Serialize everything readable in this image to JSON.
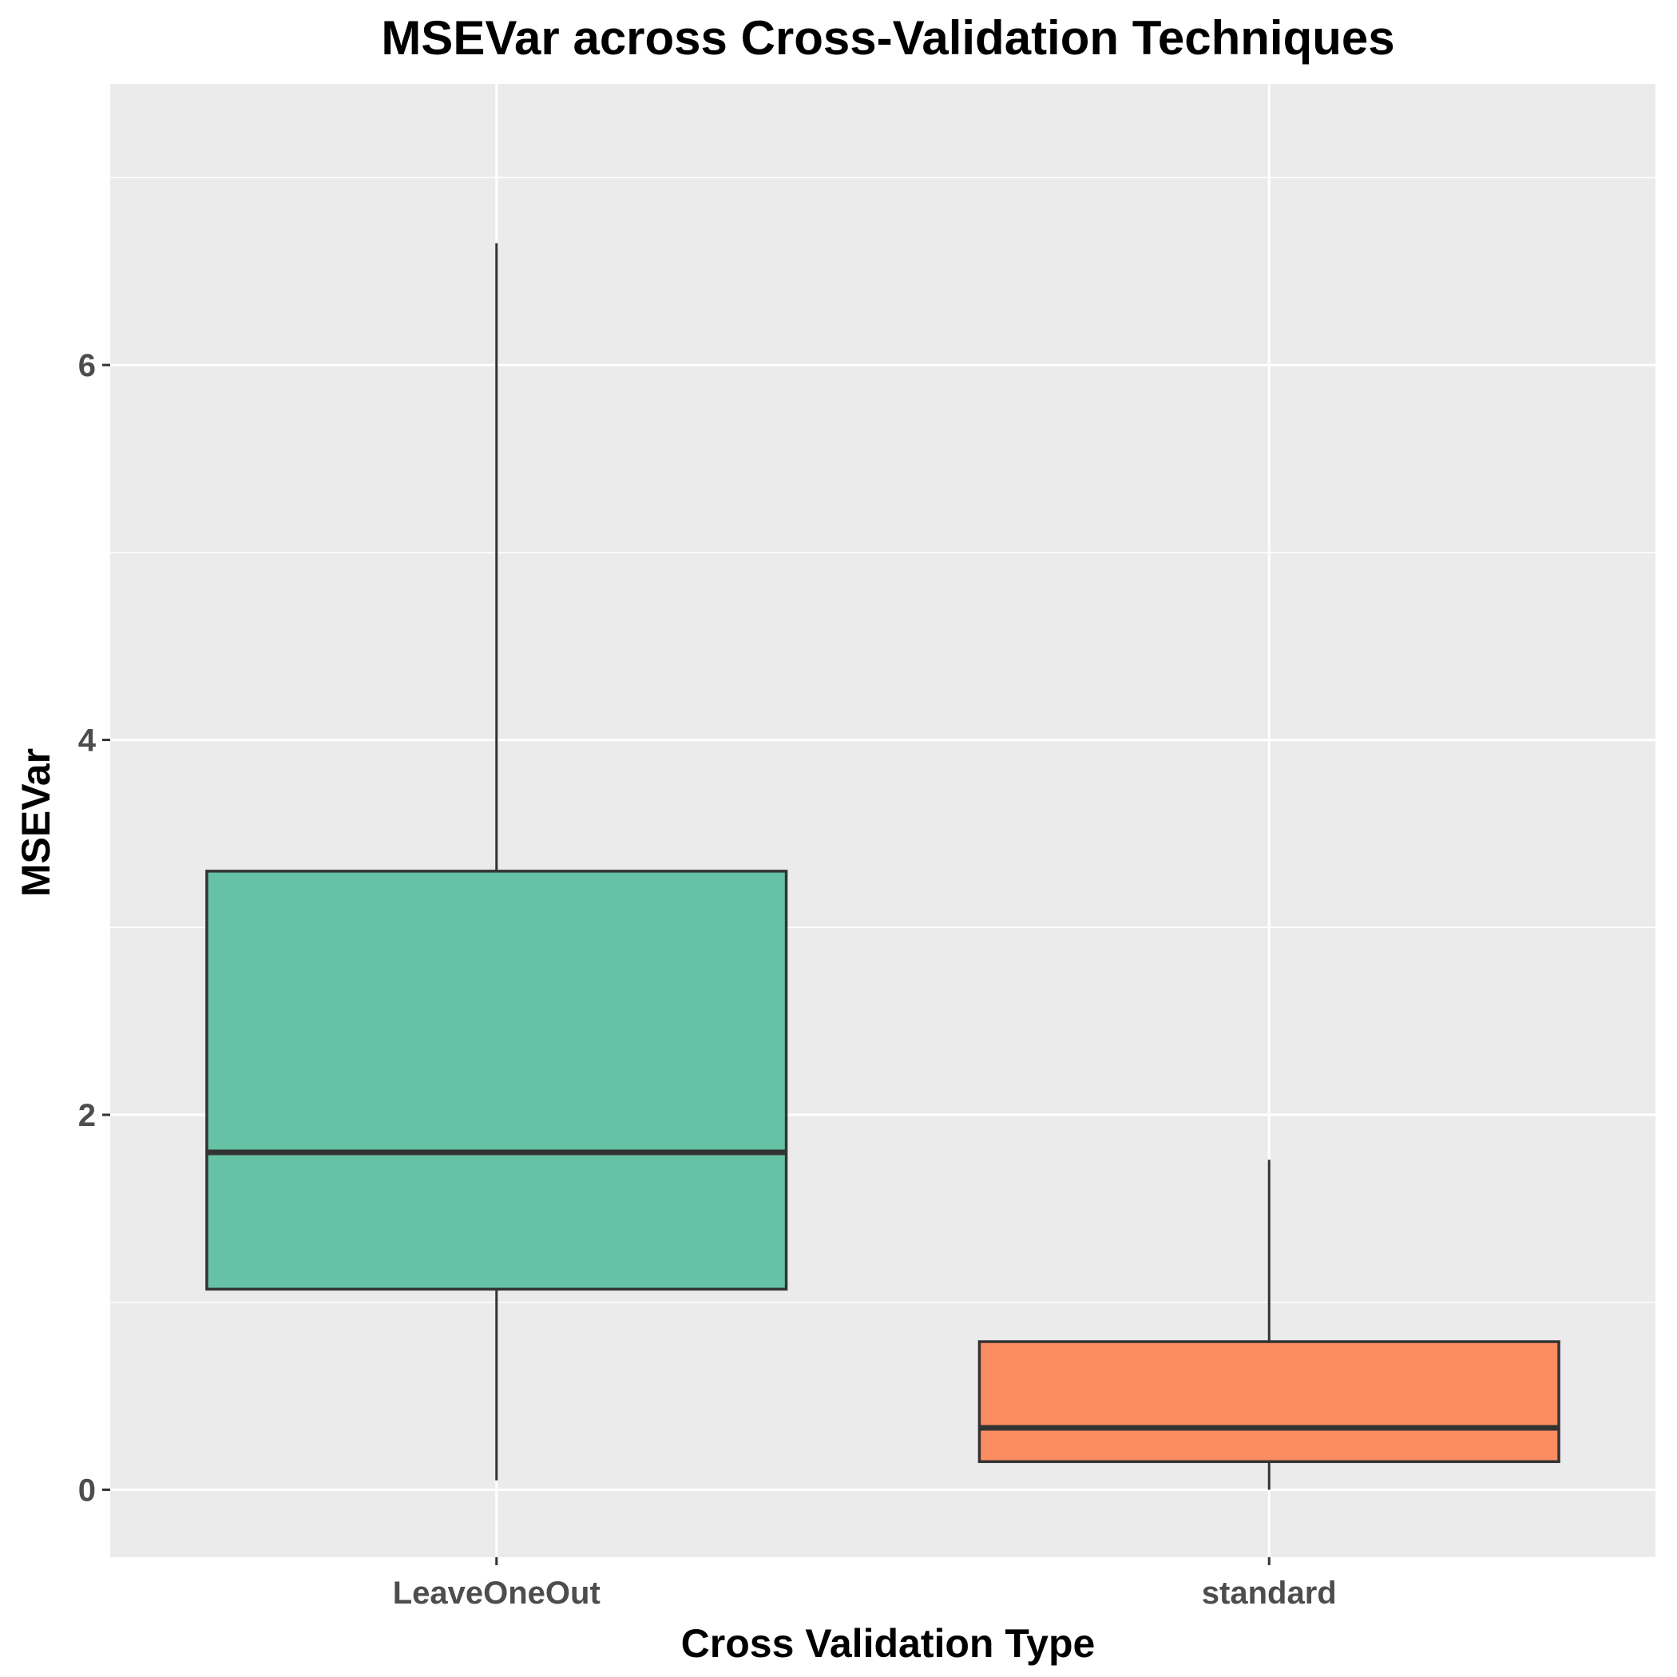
{
  "chart_data": {
    "type": "boxplot",
    "title": "MSEVar across Cross-Validation Techniques",
    "xlabel": "Cross Validation Type",
    "ylabel": "MSEVar",
    "ylim": [
      -0.36,
      7.5
    ],
    "yticks": [
      0,
      2,
      4,
      6
    ],
    "ytick_labels": [
      "0",
      "2",
      "4",
      "6"
    ],
    "grid": true,
    "background": "#ebebeb",
    "grid_color": "#ffffff",
    "box_outline_color": "#333333",
    "categories": [
      "LeaveOneOut",
      "standard"
    ],
    "boxes": [
      {
        "category": "LeaveOneOut",
        "min": 0.05,
        "q1": 1.07,
        "median": 1.8,
        "q3": 3.3,
        "max": 6.65,
        "color": "#66c2a5"
      },
      {
        "category": "standard",
        "min": 0.0,
        "q1": 0.15,
        "median": 0.33,
        "q3": 0.79,
        "max": 1.76,
        "color": "#fc8d62"
      }
    ]
  }
}
